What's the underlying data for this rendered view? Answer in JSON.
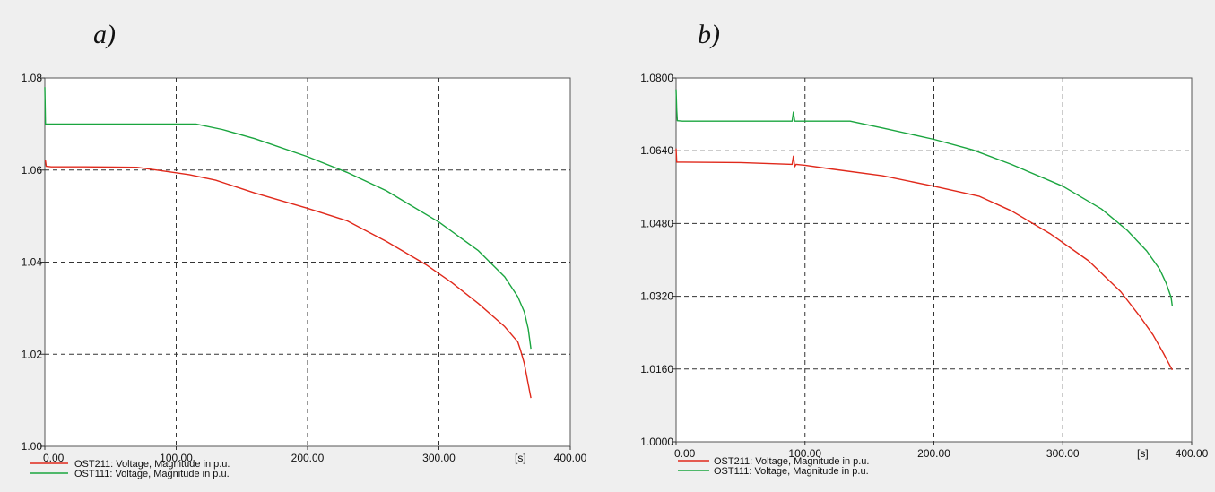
{
  "panels": [
    {
      "label": "a)"
    },
    {
      "label": "b)"
    }
  ],
  "chart_data": [
    {
      "type": "line",
      "title": "",
      "xlabel": "[s]",
      "ylabel": "",
      "xlim": [
        0,
        400
      ],
      "ylim": [
        1.0,
        1.08
      ],
      "grid": true,
      "legend_placement": "bottom-left",
      "x_tick_labels": [
        "0.00",
        "100.00",
        "200.00",
        "300.00",
        "[s]",
        "400.00"
      ],
      "y_tick_labels": [
        "1.00",
        "1.02",
        "1.04",
        "1.06",
        "1.08"
      ],
      "series": [
        {
          "name": "OST211: Voltage, Magnitude in p.u.",
          "color": "#e0291b",
          "x": [
            0,
            0.5,
            1,
            5,
            30,
            70,
            100,
            110,
            130,
            160,
            200,
            230,
            260,
            290,
            310,
            330,
            350,
            360,
            362,
            365,
            368,
            370
          ],
          "y": [
            1.062,
            1.062,
            1.0608,
            1.0607,
            1.0607,
            1.0606,
            1.0594,
            1.059,
            1.0578,
            1.055,
            1.0517,
            1.049,
            1.0445,
            1.0395,
            1.0355,
            1.031,
            1.026,
            1.0227,
            1.021,
            1.018,
            1.0135,
            1.0105
          ]
        },
        {
          "name": "OST111: Voltage, Magnitude in p.u.",
          "color": "#1aa53f",
          "x": [
            0,
            0.5,
            1,
            5,
            50,
            100,
            115,
            135,
            160,
            200,
            230,
            260,
            300,
            330,
            350,
            360,
            365,
            368,
            370
          ],
          "y": [
            1.078,
            1.07,
            1.07,
            1.07,
            1.07,
            1.07,
            1.07,
            1.0688,
            1.0668,
            1.0629,
            1.0595,
            1.0555,
            1.0487,
            1.0425,
            1.0368,
            1.0325,
            1.0292,
            1.0255,
            1.0212
          ]
        }
      ]
    },
    {
      "type": "line",
      "title": "",
      "xlabel": "[s]",
      "ylabel": "",
      "xlim": [
        0,
        400
      ],
      "ylim": [
        1.0,
        1.08
      ],
      "grid": true,
      "legend_placement": "bottom-left",
      "x_tick_labels": [
        "0.00",
        "100.00",
        "200.00",
        "300.00",
        "[s]",
        "400.00"
      ],
      "y_tick_labels": [
        "1.0000",
        "1.0160",
        "1.0320",
        "1.0480",
        "1.0640",
        "1.0800"
      ],
      "series": [
        {
          "name": "OST211: Voltage, Magnitude in p.u.",
          "color": "#e0291b",
          "x": [
            0,
            0.5,
            1,
            5,
            50,
            90,
            91,
            92,
            93,
            100,
            120,
            160,
            200,
            235,
            260,
            290,
            320,
            345,
            360,
            370,
            378,
            383,
            385
          ],
          "y": [
            1.0645,
            1.0615,
            1.0615,
            1.0615,
            1.0614,
            1.061,
            1.0628,
            1.0605,
            1.061,
            1.0608,
            1.06,
            1.0585,
            1.0562,
            1.054,
            1.0508,
            1.0458,
            1.0398,
            1.033,
            1.0275,
            1.0235,
            1.0195,
            1.0168,
            1.0158
          ]
        },
        {
          "name": "OST111: Voltage, Magnitude in p.u.",
          "color": "#1aa53f",
          "x": [
            0,
            0.5,
            1,
            5,
            50,
            90,
            91,
            92,
            93,
            100,
            135,
            160,
            200,
            230,
            260,
            300,
            330,
            350,
            365,
            375,
            380,
            384,
            385
          ],
          "y": [
            1.0775,
            1.073,
            1.0706,
            1.0705,
            1.0705,
            1.0705,
            1.0725,
            1.0705,
            1.0705,
            1.0705,
            1.0705,
            1.069,
            1.0665,
            1.0642,
            1.061,
            1.0562,
            1.0512,
            1.0465,
            1.042,
            1.038,
            1.035,
            1.0318,
            1.0298
          ]
        }
      ]
    }
  ]
}
